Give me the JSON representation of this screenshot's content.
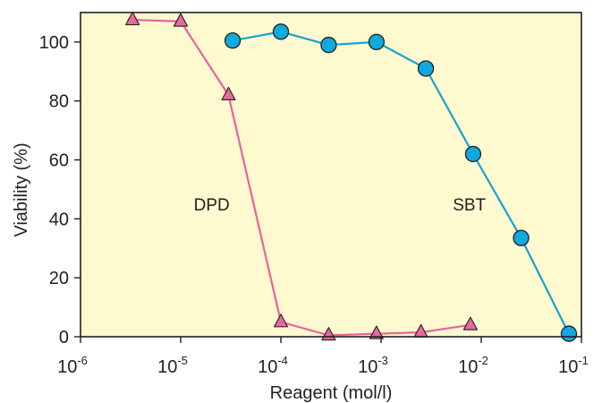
{
  "chart_data": {
    "type": "line",
    "xlabel": "Reagent (mol/l)",
    "ylabel": "Viability (%)",
    "x_scale": "log",
    "xlim": [
      1e-06,
      0.1
    ],
    "ylim": [
      0,
      110
    ],
    "x_ticks": [
      {
        "value": 1e-06,
        "base": "10",
        "exp": "-6"
      },
      {
        "value": 1e-05,
        "base": "10",
        "exp": "-5"
      },
      {
        "value": 0.0001,
        "base": "10",
        "exp": "-4"
      },
      {
        "value": 0.001,
        "base": "10",
        "exp": "-3"
      },
      {
        "value": 0.01,
        "base": "10",
        "exp": "-2"
      },
      {
        "value": 0.1,
        "base": "10",
        "exp": "-1"
      }
    ],
    "y_ticks": [
      0,
      20,
      40,
      60,
      80,
      100
    ],
    "grid": false,
    "background_color": "#fff9cf",
    "series": [
      {
        "name": "DPD",
        "marker": "triangle",
        "line_color": "#e8649a",
        "marker_color": "#e56a9e",
        "label_at": {
          "x": 1.35e-05,
          "y": 45
        },
        "x": [
          3.3e-06,
          1e-05,
          3e-05,
          0.0001,
          0.0003,
          0.0009,
          0.0025,
          0.0078
        ],
        "y": [
          107.5,
          107,
          82,
          5,
          0.5,
          1,
          1.5,
          4
        ]
      },
      {
        "name": "SBT",
        "marker": "circle",
        "line_color": "#16a3cf",
        "marker_color": "#10a9dd",
        "label_at": {
          "x": 0.0052,
          "y": 45
        },
        "x": [
          3.3e-05,
          0.0001,
          0.0003,
          0.0009,
          0.0028,
          0.0083,
          0.025,
          0.075
        ],
        "y": [
          100.5,
          103.5,
          99,
          100,
          91,
          62,
          33.5,
          1
        ]
      }
    ]
  }
}
